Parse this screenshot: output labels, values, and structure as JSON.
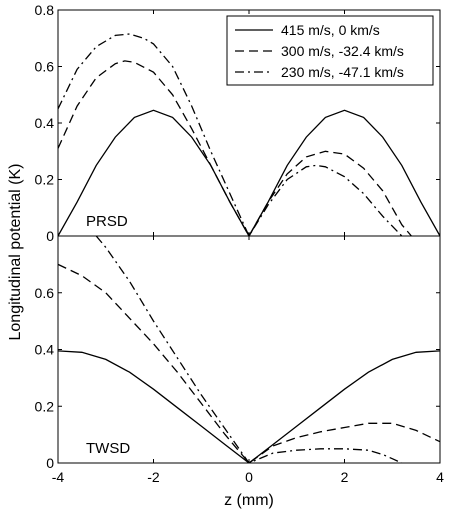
{
  "chart_data": [
    {
      "type": "line",
      "panel_label": "PRSD",
      "ylabel": "Longitudinal potential (K)",
      "xlim": [
        -4,
        4
      ],
      "ylim": [
        0,
        0.8
      ],
      "xticks": [
        "-4",
        "-2",
        "0",
        "2",
        "4"
      ],
      "yticks": [
        "0",
        "0.2",
        "0.4",
        "0.6",
        "0.8"
      ],
      "legend_position": "top-right",
      "series": [
        {
          "name": "415 m/s, 0 km/s",
          "style": "solid",
          "x": [
            -4,
            -3.6,
            -3.2,
            -2.8,
            -2.4,
            -2.0,
            -1.6,
            -1.2,
            -0.8,
            -0.4,
            0,
            0.4,
            0.8,
            1.2,
            1.6,
            2.0,
            2.4,
            2.8,
            3.2,
            3.6,
            4.0
          ],
          "y": [
            0.0,
            0.12,
            0.25,
            0.35,
            0.42,
            0.445,
            0.42,
            0.35,
            0.25,
            0.12,
            0.0,
            0.12,
            0.25,
            0.35,
            0.42,
            0.445,
            0.42,
            0.35,
            0.25,
            0.12,
            0.0
          ]
        },
        {
          "name": "300 m/s, -32.4 km/s",
          "style": "dashed",
          "x": [
            -4,
            -3.6,
            -3.2,
            -2.8,
            -2.6,
            -2.4,
            -2.0,
            -1.6,
            -1.2,
            -0.8,
            -0.4,
            0,
            0.4,
            0.8,
            1.2,
            1.6,
            2.0,
            2.4,
            2.8,
            3.2,
            3.4
          ],
          "y": [
            0.31,
            0.46,
            0.56,
            0.61,
            0.62,
            0.615,
            0.58,
            0.5,
            0.38,
            0.25,
            0.12,
            0.0,
            0.12,
            0.22,
            0.28,
            0.3,
            0.29,
            0.24,
            0.16,
            0.04,
            0.0
          ]
        },
        {
          "name": "230 m/s, -47.1 km/s",
          "style": "dashdot",
          "x": [
            -4,
            -3.6,
            -3.2,
            -2.8,
            -2.5,
            -2.2,
            -2.0,
            -1.6,
            -1.2,
            -0.8,
            -0.4,
            0,
            0.4,
            0.8,
            1.2,
            1.4,
            1.6,
            2.0,
            2.4,
            2.8,
            3.2
          ],
          "y": [
            0.45,
            0.59,
            0.67,
            0.71,
            0.715,
            0.7,
            0.68,
            0.6,
            0.46,
            0.3,
            0.15,
            0.0,
            0.11,
            0.2,
            0.245,
            0.25,
            0.245,
            0.21,
            0.15,
            0.07,
            0.0
          ]
        }
      ]
    },
    {
      "type": "line",
      "panel_label": "TWSD",
      "xlabel": "z (mm)",
      "xlim": [
        -4,
        4
      ],
      "ylim": [
        0,
        0.8
      ],
      "xticks": [
        "-4",
        "-2",
        "0",
        "2",
        "4"
      ],
      "yticks": [
        "0",
        "0.2",
        "0.4",
        "0.6"
      ],
      "series": [
        {
          "name": "415 m/s, 0 km/s",
          "style": "solid",
          "x": [
            -4,
            -3.5,
            -3.0,
            -2.5,
            -2.0,
            -1.5,
            -1.0,
            -0.5,
            0,
            0.5,
            1.0,
            1.5,
            2.0,
            2.5,
            3.0,
            3.5,
            4.0
          ],
          "y": [
            0.395,
            0.39,
            0.365,
            0.32,
            0.26,
            0.195,
            0.13,
            0.065,
            0.0,
            0.065,
            0.13,
            0.195,
            0.26,
            0.32,
            0.365,
            0.39,
            0.395
          ]
        },
        {
          "name": "300 m/s, -32.4 km/s",
          "style": "dashed",
          "x": [
            -4,
            -3.5,
            -3.0,
            -2.5,
            -2.0,
            -1.5,
            -1.0,
            -0.5,
            0,
            0.5,
            1.0,
            1.5,
            2.0,
            2.5,
            3.0,
            3.5,
            4.0
          ],
          "y": [
            0.7,
            0.66,
            0.6,
            0.51,
            0.42,
            0.32,
            0.21,
            0.1,
            0.0,
            0.06,
            0.09,
            0.11,
            0.125,
            0.14,
            0.14,
            0.115,
            0.075
          ]
        },
        {
          "name": "230 m/s, -47.1 km/s",
          "style": "dashdot",
          "x": [
            -3.2,
            -3.0,
            -2.5,
            -2.0,
            -1.5,
            -1.0,
            -0.5,
            0,
            0.5,
            1.0,
            1.5,
            2.0,
            2.5,
            2.8,
            3.0,
            3.2
          ],
          "y": [
            0.8,
            0.76,
            0.64,
            0.5,
            0.37,
            0.24,
            0.12,
            0.0,
            0.035,
            0.045,
            0.05,
            0.05,
            0.045,
            0.03,
            0.015,
            0.0
          ]
        }
      ]
    }
  ]
}
